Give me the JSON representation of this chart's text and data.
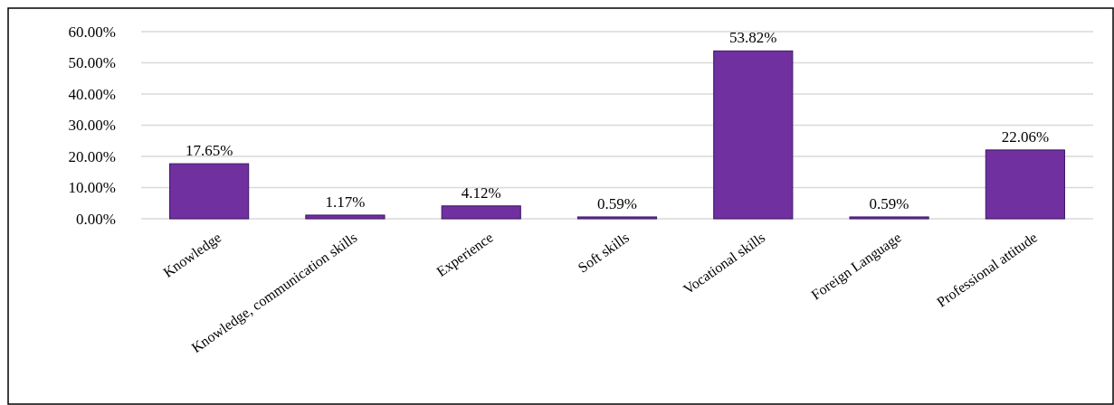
{
  "chart_data": {
    "type": "bar",
    "categories": [
      "Knowledge",
      "Knowledge, communication skills",
      "Experience",
      "Soft skills",
      "Vocational skills",
      "Foreign Language",
      "Professional attitude"
    ],
    "values": [
      17.65,
      1.17,
      4.12,
      0.59,
      53.82,
      0.59,
      22.06
    ],
    "value_labels": [
      "17.65%",
      "1.17%",
      "4.12%",
      "0.59%",
      "53.82%",
      "0.59%",
      "22.06%"
    ],
    "color": "#7030a0",
    "ylim": [
      0,
      60
    ],
    "yticks": [
      {
        "value": 0,
        "label": "0.00%"
      },
      {
        "value": 10,
        "label": "10.00%"
      },
      {
        "value": 20,
        "label": "20.00%"
      },
      {
        "value": 30,
        "label": "30.00%"
      },
      {
        "value": 40,
        "label": "40.00%"
      },
      {
        "value": 50,
        "label": "50.00%"
      },
      {
        "value": 60,
        "label": "60.00%"
      }
    ],
    "grid": "y"
  }
}
